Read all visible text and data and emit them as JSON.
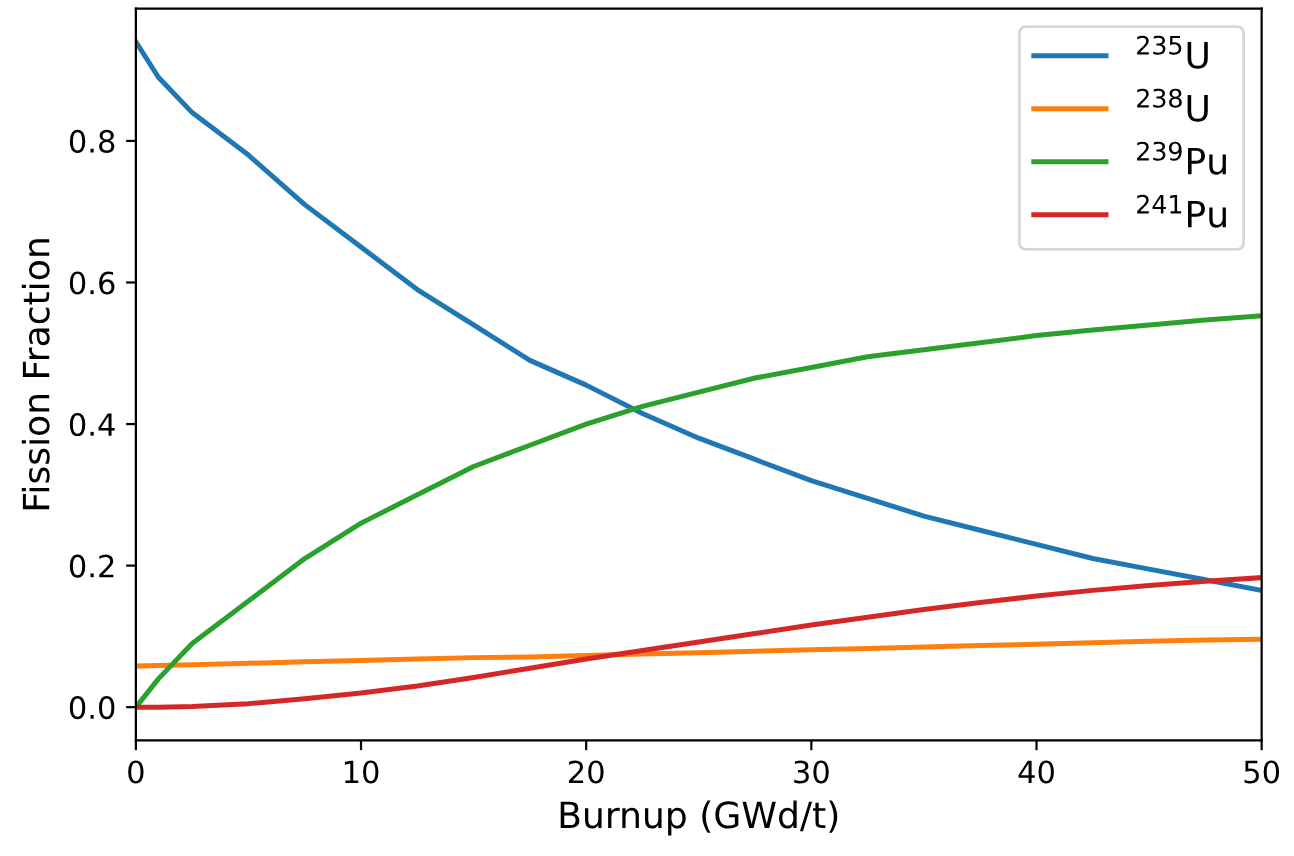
{
  "chart_data": {
    "type": "line",
    "xlabel": "Burnup (GWd/t)",
    "ylabel": "Fission Fraction",
    "x": [
      0,
      1,
      2.5,
      5,
      7.5,
      10,
      12.5,
      15,
      17.5,
      20,
      22.5,
      25,
      27.5,
      30,
      32.5,
      35,
      37.5,
      40,
      42.5,
      45,
      47.5,
      50
    ],
    "series": [
      {
        "name": "$^{235}$U",
        "color": "#1f77b4",
        "values": [
          0.94,
          0.89,
          0.84,
          0.78,
          0.71,
          0.65,
          0.59,
          0.54,
          0.49,
          0.455,
          0.415,
          0.38,
          0.35,
          0.32,
          0.295,
          0.27,
          0.25,
          0.23,
          0.21,
          0.195,
          0.18,
          0.165
        ]
      },
      {
        "name": "$^{238}$U",
        "color": "#ff7f0e",
        "values": [
          0.058,
          0.059,
          0.06,
          0.062,
          0.064,
          0.066,
          0.068,
          0.07,
          0.071,
          0.073,
          0.075,
          0.077,
          0.079,
          0.081,
          0.083,
          0.085,
          0.087,
          0.089,
          0.091,
          0.093,
          0.095,
          0.096
        ]
      },
      {
        "name": "$^{239}$Pu",
        "color": "#2ca02c",
        "values": [
          0.0,
          0.04,
          0.09,
          0.15,
          0.21,
          0.26,
          0.3,
          0.34,
          0.37,
          0.4,
          0.425,
          0.445,
          0.465,
          0.48,
          0.495,
          0.505,
          0.515,
          0.525,
          0.533,
          0.54,
          0.547,
          0.553
        ]
      },
      {
        "name": "$^{241}$Pu",
        "color": "#d62728",
        "values": [
          0.0,
          0.0,
          0.001,
          0.005,
          0.012,
          0.02,
          0.03,
          0.042,
          0.055,
          0.068,
          0.08,
          0.092,
          0.104,
          0.116,
          0.127,
          0.138,
          0.148,
          0.157,
          0.165,
          0.172,
          0.178,
          0.183
        ]
      }
    ],
    "xlim": [
      0,
      50
    ],
    "xticks": [
      0,
      10,
      20,
      30,
      40,
      50
    ],
    "ylim": [
      -0.047,
      0.987
    ],
    "yticks": [
      {
        "value": 0,
        "label": "0.0"
      },
      0.2,
      0.4,
      0.6,
      0.8
    ],
    "grid": false,
    "legend": "top right",
    "marker": "none",
    "line_style": "solid"
  }
}
